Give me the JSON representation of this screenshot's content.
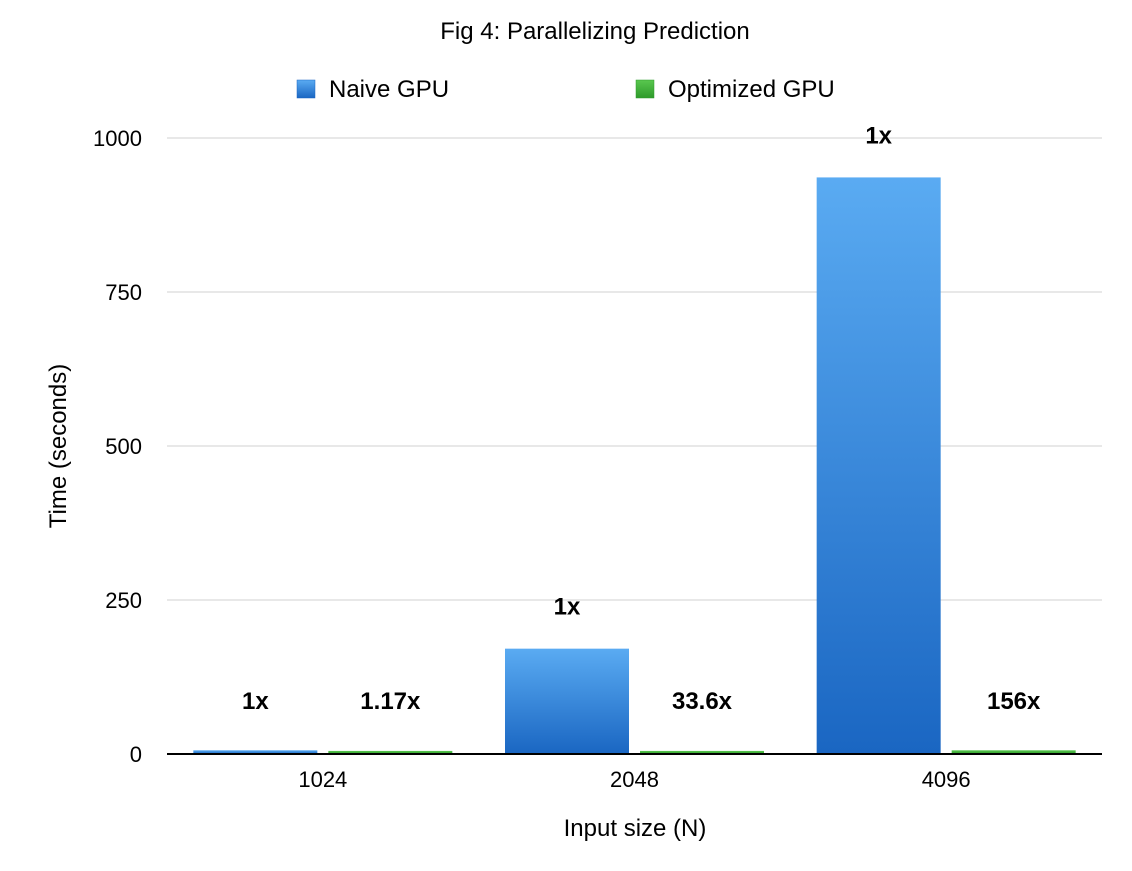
{
  "chart_data": {
    "type": "bar",
    "title": "Fig 4: Parallelizing Prediction",
    "xlabel": "Input size (N)",
    "ylabel": "Time (seconds)",
    "categories": [
      "1024",
      "2048",
      "4096"
    ],
    "ylim": [
      0,
      1000
    ],
    "yticks": [
      0,
      250,
      500,
      750,
      1000
    ],
    "ytick_labels": [
      "0",
      "250",
      "500",
      "750",
      "1000"
    ],
    "grid": true,
    "legend_position": "top",
    "series": [
      {
        "name": "Naive GPU",
        "values": [
          6,
          171,
          936
        ],
        "labels": [
          "1x",
          "1x",
          "1x"
        ],
        "color_top": "#5aabf2",
        "color_bottom": "#1a66c2"
      },
      {
        "name": "Optimized GPU",
        "values": [
          5,
          5,
          6
        ],
        "labels": [
          "1.17x",
          "33.6x",
          "156x"
        ],
        "color_top": "#59c74f",
        "color_bottom": "#2e9a2a"
      }
    ]
  }
}
